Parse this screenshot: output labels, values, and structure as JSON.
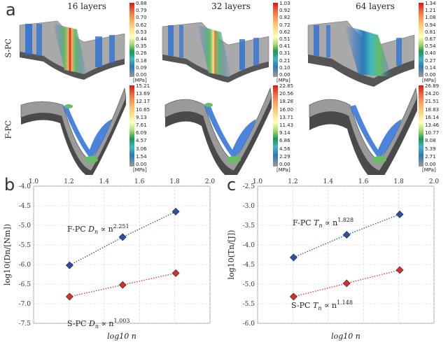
{
  "panel_a": {
    "letter": "a",
    "column_titles": [
      "16 layers",
      "32 layers",
      "64 layers"
    ],
    "row_labels": [
      "S-PC",
      "F-PC"
    ],
    "colorbars": [
      {
        "unit": "[MPa]",
        "ticks": [
          "0.88",
          "0.79",
          "0.70",
          "0.62",
          "0.53",
          "0.44",
          "0.35",
          "0.26",
          "0.18",
          "0.09",
          "0.00"
        ]
      },
      {
        "unit": "[MPa]",
        "ticks": [
          "1.03",
          "0.92",
          "0.82",
          "0.72",
          "0.62",
          "0.51",
          "0.41",
          "0.31",
          "0.21",
          "0.10",
          "0.00"
        ]
      },
      {
        "unit": "[MPa]",
        "ticks": [
          "1.34",
          "1.21",
          "1.08",
          "0.94",
          "0.81",
          "0.67",
          "0.54",
          "0.40",
          "0.27",
          "0.14",
          "0.00"
        ]
      },
      {
        "unit": "[MPa]",
        "ticks": [
          "15.21",
          "13.69",
          "12.17",
          "10.65",
          "9.13",
          "7.61",
          "6.09",
          "4.57",
          "3.06",
          "1.54",
          "0.00"
        ]
      },
      {
        "unit": "[MPa]",
        "ticks": [
          "22.85",
          "20.56",
          "18.28",
          "16.00",
          "13.71",
          "11.43",
          "9.14",
          "6.86",
          "4.56",
          "2.29",
          "0.00"
        ]
      },
      {
        "unit": "[MPa]",
        "ticks": [
          "26.89",
          "24.20",
          "21.51",
          "18.83",
          "16.14",
          "13.46",
          "10.77",
          "8.08",
          "5.39",
          "2.71",
          "0.00"
        ]
      }
    ],
    "colormap": [
      "#d7191c",
      "#f46d43",
      "#fdae61",
      "#fee08b",
      "#ffffbf",
      "#d9ef8b",
      "#a6d96a",
      "#66bd63",
      "#1a9850",
      "#2c7bb6",
      "#9a9a9a"
    ]
  },
  "chart_data": [
    {
      "type": "scatter",
      "letter": "b",
      "xlabel": "log10 n",
      "ylabel": "log10(Dn/[Nm])",
      "xlim": [
        1.0,
        2.0
      ],
      "ylim": [
        -7.5,
        -4.0
      ],
      "xticks": [
        "1.0",
        "1.2",
        "1.4",
        "1.6",
        "1.8",
        "2.0"
      ],
      "yticks": [
        "-4.0",
        "-4.5",
        "-5.0",
        "-5.5",
        "-6.0",
        "-6.5",
        "-7.0",
        "-7.5"
      ],
      "grid": true,
      "series": [
        {
          "name": "F-PC Dn ∝ n^2.251",
          "color": "#2b4fa8",
          "line_color": "#2b4fa8",
          "x": [
            1.204,
            1.505,
            1.806
          ],
          "y": [
            -6.02,
            -5.3,
            -4.65
          ]
        },
        {
          "name": "S-PC Dn ∝ n^1.003",
          "color": "#d6302a",
          "line_color": "#d6302a",
          "x": [
            1.204,
            1.505,
            1.806
          ],
          "y": [
            -6.82,
            -6.52,
            -6.22
          ]
        }
      ],
      "annotations": [
        {
          "prefix": "F-PC ",
          "sym": "D",
          "sub": "n",
          "rel": " ∝ n",
          "exp": "2.251"
        },
        {
          "prefix": "S-PC ",
          "sym": "D",
          "sub": "n",
          "rel": " ∝ n",
          "exp": "1.003"
        }
      ]
    },
    {
      "type": "scatter",
      "letter": "c",
      "xlabel": "log10 n",
      "ylabel": "log10(Tn/[J])",
      "xlim": [
        1.0,
        2.0
      ],
      "ylim": [
        -6.0,
        -2.5
      ],
      "xticks": [
        "1.0",
        "1.2",
        "1.4",
        "1.6",
        "1.8",
        "2.0"
      ],
      "yticks": [
        "-2.5",
        "-3.0",
        "-3.5",
        "-4.0",
        "-4.5",
        "-5.0",
        "-5.5",
        "-6.0"
      ],
      "grid": true,
      "series": [
        {
          "name": "F-PC Tn ∝ n^1.828",
          "color": "#2b4fa8",
          "line_color": "#2b4fa8",
          "x": [
            1.204,
            1.505,
            1.806
          ],
          "y": [
            -4.32,
            -3.74,
            -3.22
          ]
        },
        {
          "name": "S-PC Tn ∝ n^1.148",
          "color": "#d6302a",
          "line_color": "#d6302a",
          "x": [
            1.204,
            1.505,
            1.806
          ],
          "y": [
            -5.32,
            -4.98,
            -4.64
          ]
        }
      ],
      "annotations": [
        {
          "prefix": "F-PC ",
          "sym": "T",
          "sub": "n",
          "rel": " ∝ n",
          "exp": "1.828"
        },
        {
          "prefix": "S-PC ",
          "sym": "T",
          "sub": "n",
          "rel": " ∝ n",
          "exp": "1.148"
        }
      ]
    }
  ]
}
